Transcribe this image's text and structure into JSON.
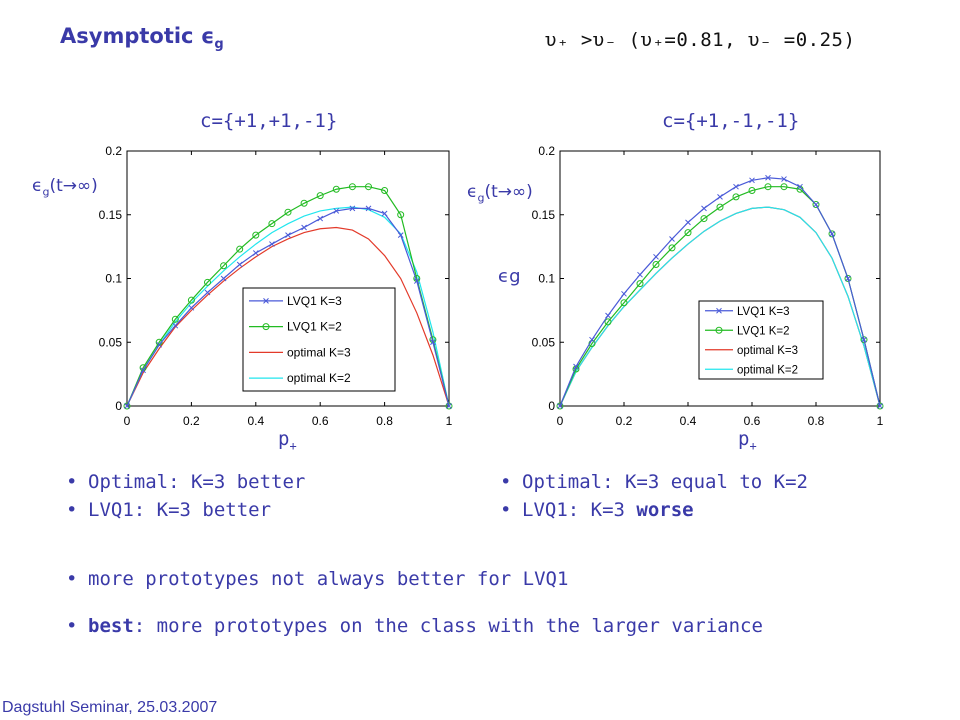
{
  "slide": {
    "title": "Asymptotic",
    "title_eps": "ϵ",
    "title_sub": "g",
    "header_text": "υ₊ >υ₋ (υ₊=0.81, υ₋ =0.25)",
    "bullets_left": [
      "Optimal: K=3 better",
      "LVQ1: K=3 better"
    ],
    "bullets_right": [
      "Optimal: K=3 equal to K=2"
    ],
    "bullet_right2_prefix": "LVQ1: K=3 ",
    "bullet_right2_bold": "worse",
    "bullet_more": "more prototypes not always better for LVQ1",
    "bullet_best_bold": "best",
    "bullet_best_rest": ": more prototypes on the class with the larger variance",
    "footer": "Dagstuhl Seminar, 25.03.2007",
    "bullet_glyph": "•"
  },
  "colors": {
    "accent": "#3a3aa8",
    "lvq1_k3": "#4a5ad8",
    "lvq1_k2": "#22bb22",
    "optimal_k3": "#e33a2a",
    "optimal_k2": "#22e6ee"
  },
  "chart_data": [
    {
      "type": "line",
      "title": "c={+1,+1,-1}",
      "ylabel_eps": "ϵ",
      "ylabel_sub": "g",
      "ylabel_rest": "(t→∞)",
      "xlabel": "p",
      "xlabel_sub": "+",
      "xlim": [
        0,
        1
      ],
      "ylim": [
        0,
        0.2
      ],
      "xticks": [
        "0",
        "0.2",
        "0.4",
        "0.6",
        "0.8",
        "1"
      ],
      "yticks": [
        "0",
        "0.05",
        "0.1",
        "0.15",
        "0.2"
      ],
      "legend_position": "lower-right",
      "series": [
        {
          "name": "LVQ1 K=3",
          "color_key": "lvq1_k3",
          "marker": "x",
          "x": [
            0,
            0.05,
            0.1,
            0.15,
            0.2,
            0.25,
            0.3,
            0.35,
            0.4,
            0.45,
            0.5,
            0.55,
            0.6,
            0.65,
            0.7,
            0.75,
            0.8,
            0.85,
            0.9,
            0.95,
            1.0
          ],
          "y": [
            0,
            0.028,
            0.048,
            0.063,
            0.077,
            0.089,
            0.1,
            0.111,
            0.12,
            0.127,
            0.134,
            0.14,
            0.147,
            0.153,
            0.155,
            0.155,
            0.151,
            0.134,
            0.098,
            0.05,
            0
          ]
        },
        {
          "name": "LVQ1 K=2",
          "color_key": "lvq1_k2",
          "marker": "o",
          "x": [
            0,
            0.05,
            0.1,
            0.15,
            0.2,
            0.25,
            0.3,
            0.35,
            0.4,
            0.45,
            0.5,
            0.55,
            0.6,
            0.65,
            0.7,
            0.75,
            0.8,
            0.85,
            0.9,
            0.95,
            1.0
          ],
          "y": [
            0,
            0.03,
            0.05,
            0.068,
            0.083,
            0.097,
            0.11,
            0.123,
            0.134,
            0.143,
            0.152,
            0.159,
            0.165,
            0.17,
            0.172,
            0.172,
            0.169,
            0.15,
            0.1,
            0.052,
            0
          ]
        },
        {
          "name": "optimal K=3",
          "color_key": "optimal_k3",
          "marker": "",
          "x": [
            0,
            0.05,
            0.1,
            0.15,
            0.2,
            0.25,
            0.3,
            0.35,
            0.4,
            0.45,
            0.5,
            0.55,
            0.6,
            0.65,
            0.7,
            0.75,
            0.8,
            0.85,
            0.9,
            0.95,
            1.0
          ],
          "y": [
            0,
            0.026,
            0.045,
            0.062,
            0.075,
            0.087,
            0.098,
            0.108,
            0.117,
            0.125,
            0.131,
            0.136,
            0.139,
            0.14,
            0.138,
            0.131,
            0.118,
            0.1,
            0.073,
            0.04,
            0
          ]
        },
        {
          "name": "optimal K=2",
          "color_key": "optimal_k2",
          "marker": "",
          "x": [
            0,
            0.05,
            0.1,
            0.15,
            0.2,
            0.25,
            0.3,
            0.35,
            0.4,
            0.45,
            0.5,
            0.55,
            0.6,
            0.65,
            0.7,
            0.75,
            0.8,
            0.85,
            0.9,
            0.95,
            1.0
          ],
          "y": [
            0,
            0.028,
            0.048,
            0.066,
            0.081,
            0.094,
            0.106,
            0.117,
            0.127,
            0.136,
            0.143,
            0.149,
            0.153,
            0.155,
            0.156,
            0.154,
            0.148,
            0.135,
            0.105,
            0.058,
            0
          ]
        }
      ]
    },
    {
      "type": "line",
      "title": "c={+1,-1,-1}",
      "ylabel_eps": "ϵ",
      "ylabel_sub": "g",
      "ylabel_rest": "(t→∞)",
      "ylabel_alt": "ϵg",
      "xlabel": "p",
      "xlabel_sub": "+",
      "xlim": [
        0,
        1
      ],
      "ylim": [
        0,
        0.2
      ],
      "xticks": [
        "0",
        "0.2",
        "0.4",
        "0.6",
        "0.8",
        "1"
      ],
      "yticks": [
        "0",
        "0.05",
        "0.1",
        "0.15",
        "0.2"
      ],
      "legend_position": "lower-right",
      "series": [
        {
          "name": "LVQ1 K=3",
          "color_key": "lvq1_k3",
          "marker": "x",
          "x": [
            0,
            0.05,
            0.1,
            0.15,
            0.2,
            0.25,
            0.3,
            0.35,
            0.4,
            0.45,
            0.5,
            0.55,
            0.6,
            0.65,
            0.7,
            0.75,
            0.8,
            0.85,
            0.9,
            0.95,
            1.0
          ],
          "y": [
            0,
            0.031,
            0.052,
            0.071,
            0.088,
            0.103,
            0.117,
            0.131,
            0.144,
            0.155,
            0.164,
            0.172,
            0.177,
            0.179,
            0.178,
            0.172,
            0.158,
            0.135,
            0.1,
            0.052,
            0
          ]
        },
        {
          "name": "LVQ1 K=2",
          "color_key": "lvq1_k2",
          "marker": "o",
          "x": [
            0,
            0.05,
            0.1,
            0.15,
            0.2,
            0.25,
            0.3,
            0.35,
            0.4,
            0.45,
            0.5,
            0.55,
            0.6,
            0.65,
            0.7,
            0.75,
            0.8,
            0.85,
            0.9,
            0.95,
            1.0
          ],
          "y": [
            0,
            0.029,
            0.049,
            0.066,
            0.081,
            0.096,
            0.111,
            0.124,
            0.136,
            0.147,
            0.156,
            0.164,
            0.169,
            0.172,
            0.172,
            0.17,
            0.158,
            0.135,
            0.1,
            0.052,
            0
          ]
        },
        {
          "name": "optimal K=3",
          "color_key": "optimal_k3",
          "marker": "",
          "x": [
            0,
            0.05,
            0.1,
            0.15,
            0.2,
            0.25,
            0.3,
            0.35,
            0.4,
            0.45,
            0.5,
            0.55,
            0.6,
            0.65,
            0.7,
            0.75,
            0.8,
            0.85,
            0.9,
            0.95,
            1.0
          ],
          "y": [
            0,
            0.027,
            0.046,
            0.063,
            0.078,
            0.091,
            0.104,
            0.116,
            0.127,
            0.137,
            0.145,
            0.151,
            0.155,
            0.156,
            0.154,
            0.148,
            0.136,
            0.116,
            0.086,
            0.047,
            0
          ]
        },
        {
          "name": "optimal K=2",
          "color_key": "optimal_k2",
          "marker": "",
          "x": [
            0,
            0.05,
            0.1,
            0.15,
            0.2,
            0.25,
            0.3,
            0.35,
            0.4,
            0.45,
            0.5,
            0.55,
            0.6,
            0.65,
            0.7,
            0.75,
            0.8,
            0.85,
            0.9,
            0.95,
            1.0
          ],
          "y": [
            0,
            0.027,
            0.046,
            0.063,
            0.078,
            0.091,
            0.104,
            0.116,
            0.127,
            0.137,
            0.145,
            0.151,
            0.155,
            0.156,
            0.154,
            0.148,
            0.136,
            0.116,
            0.086,
            0.047,
            0
          ]
        }
      ]
    }
  ]
}
